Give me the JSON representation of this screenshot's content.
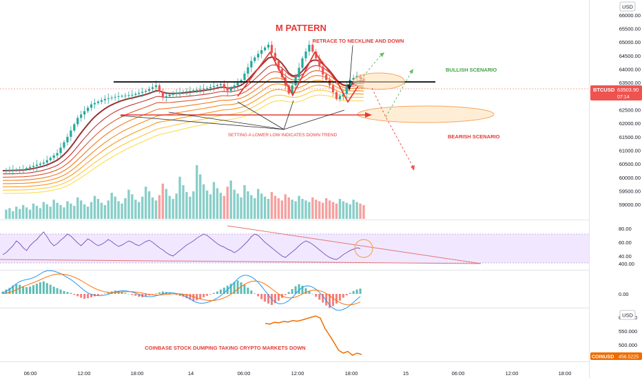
{
  "chart_data": {
    "type": "candlestick",
    "symbol": "BTCUSD",
    "currency": "USD",
    "last_price": "63503.90",
    "countdown": "07:14",
    "time_labels": [
      "06:00",
      "12:00",
      "18:00",
      "14",
      "06:00",
      "12:00",
      "18:00",
      "15",
      "06:00",
      "12:00",
      "18:00"
    ],
    "price_ticks": [
      66000,
      65500,
      65000,
      64500,
      64000,
      63500,
      63000,
      62500,
      62000,
      61500,
      61000,
      60500,
      60000,
      59500,
      59000
    ],
    "price_tick_labels": [
      "66000.00",
      "65500.00",
      "65000.00",
      "64500.00",
      "64000.00",
      "63500.00",
      "63000.00",
      "62500.00",
      "62000.00",
      "61500.00",
      "61000.00",
      "60500.00",
      "60000.00",
      "59500.00",
      "59000.00"
    ],
    "price_range": [
      58800,
      66300
    ],
    "price_path": [
      [
        0,
        60250
      ],
      [
        6,
        60300
      ],
      [
        12,
        60550
      ],
      [
        16,
        60900
      ],
      [
        19,
        61500
      ],
      [
        22,
        62200
      ],
      [
        26,
        62700
      ],
      [
        30,
        62900
      ],
      [
        34,
        63000
      ],
      [
        38,
        63050
      ],
      [
        42,
        63200
      ],
      [
        45,
        63400
      ],
      [
        47,
        62950
      ],
      [
        50,
        63100
      ],
      [
        55,
        63200
      ],
      [
        60,
        63300
      ],
      [
        64,
        63450
      ],
      [
        66,
        63200
      ],
      [
        70,
        63600
      ],
      [
        73,
        64300
      ],
      [
        76,
        64700
      ],
      [
        78,
        64900
      ],
      [
        80,
        64300
      ],
      [
        82,
        63700
      ],
      [
        84,
        63100
      ],
      [
        86,
        63700
      ],
      [
        88,
        64400
      ],
      [
        90,
        64900
      ],
      [
        92,
        64400
      ],
      [
        94,
        63800
      ],
      [
        96,
        63400
      ],
      [
        98,
        62900
      ],
      [
        100,
        63100
      ],
      [
        102,
        63600
      ],
      [
        104,
        63750
      ],
      [
        106,
        63550
      ]
    ],
    "ribbon_offsets": [
      0,
      120,
      240,
      360,
      480,
      600,
      720,
      840
    ],
    "ribbon_colors": [
      "#8b1a1a",
      "#b71c1c",
      "#d84315",
      "#ef6c00",
      "#f57c00",
      "#fb8c00",
      "#fbc02d",
      "#fdd835"
    ],
    "volume": [
      12,
      14,
      10,
      16,
      13,
      18,
      15,
      12,
      20,
      17,
      14,
      22,
      19,
      16,
      25,
      21,
      18,
      15,
      23,
      20,
      17,
      28,
      24,
      19,
      16,
      22,
      30,
      26,
      21,
      18,
      24,
      34,
      29,
      23,
      20,
      27,
      38,
      32,
      25,
      22,
      29,
      42,
      36,
      28,
      24,
      31,
      46,
      39,
      30,
      26,
      33,
      55,
      44,
      35,
      29,
      36,
      70,
      58,
      45,
      37,
      32,
      48,
      40,
      34,
      30,
      42,
      50,
      38,
      33,
      28,
      44,
      36,
      31,
      27,
      39,
      33,
      29,
      26,
      35,
      30,
      27,
      24,
      32,
      28,
      25,
      23,
      30,
      26,
      24,
      22,
      28,
      25,
      23,
      21,
      27,
      24,
      22,
      20,
      26,
      23,
      21,
      19,
      25,
      22,
      20,
      18,
      24,
      21,
      19,
      17
    ],
    "rsi_ticks": [
      80,
      60,
      40
    ],
    "rsi_tick_labels": [
      "80.00",
      "60.00",
      "40.00"
    ],
    "rsi_band": [
      30,
      70
    ],
    "rsi": [
      42,
      45,
      50,
      55,
      62,
      58,
      52,
      48,
      55,
      60,
      64,
      70,
      75,
      68,
      60,
      55,
      58,
      63,
      67,
      72,
      69,
      64,
      59,
      55,
      60,
      65,
      62,
      58,
      55,
      57,
      60,
      64,
      61,
      57,
      54,
      56,
      59,
      62,
      60,
      57,
      55,
      58,
      61,
      63,
      60,
      56,
      52,
      49,
      45,
      42,
      40,
      44,
      48,
      52,
      56,
      59,
      62,
      66,
      69,
      72,
      70,
      66,
      62,
      58,
      55,
      53,
      50,
      48,
      45,
      48,
      52,
      57,
      62,
      68,
      72,
      70,
      65,
      60,
      56,
      52,
      48,
      44,
      40,
      38,
      42,
      46,
      50,
      55,
      59,
      62,
      60,
      57,
      53,
      49,
      45,
      41,
      38,
      36,
      35,
      38,
      42,
      45,
      48,
      50,
      52,
      51
    ],
    "macd_ticks": [
      400,
      0
    ],
    "macd_tick_labels": [
      "400.00",
      "0.00"
    ],
    "macd_hist": [
      10,
      18,
      25,
      35,
      40,
      38,
      32,
      28,
      30,
      36,
      42,
      48,
      52,
      45,
      38,
      30,
      24,
      18,
      12,
      8,
      4,
      -4,
      -10,
      -16,
      -20,
      -18,
      -14,
      -10,
      -6,
      -2,
      2,
      6,
      10,
      14,
      12,
      8,
      4,
      0,
      -4,
      -8,
      -12,
      -14,
      -10,
      -6,
      -2,
      2,
      6,
      10,
      8,
      4,
      0,
      -4,
      -8,
      -12,
      -18,
      -24,
      -30,
      -26,
      -20,
      -14,
      -8,
      -2,
      4,
      10,
      18,
      26,
      34,
      42,
      50,
      56,
      48,
      38,
      26,
      14,
      2,
      -10,
      -22,
      -32,
      -40,
      -46,
      -38,
      -28,
      -16,
      -4,
      8,
      20,
      32,
      40,
      34,
      24,
      12,
      0,
      -12,
      -24,
      -36,
      -48,
      -58,
      -50,
      -40,
      -28,
      -16,
      -6,
      4,
      12,
      18,
      22
    ],
    "coin_symbol": "COINUSD",
    "coin_price": "456.5225",
    "coin_currency": "USD",
    "coin_ticks": [
      600,
      550,
      500
    ],
    "coin_tick_labels": [
      "600.000",
      "550.000",
      "500.000"
    ],
    "coin_range": [
      445,
      620
    ],
    "coin": [
      [
        0,
        578
      ],
      [
        1,
        575
      ],
      [
        2,
        582
      ],
      [
        3,
        580
      ],
      [
        4,
        585
      ],
      [
        5,
        583
      ],
      [
        6,
        588
      ],
      [
        7,
        586
      ],
      [
        8,
        590
      ],
      [
        9,
        595
      ],
      [
        10,
        600
      ],
      [
        11,
        605
      ],
      [
        12,
        597
      ],
      [
        13,
        560
      ],
      [
        14,
        535
      ],
      [
        15,
        508
      ],
      [
        16,
        480
      ],
      [
        17,
        470
      ],
      [
        18,
        476
      ],
      [
        19,
        462
      ],
      [
        20,
        470
      ],
      [
        21,
        465
      ]
    ]
  },
  "annotations": {
    "title": "M PATTERN",
    "retrace": "RETRACE TO NECKLINE AND DOWN",
    "bullish": "BULLISH SCENARIO",
    "bearish": "BEARISH SCENARIO",
    "lower_low": "SETTING A LOWER LOW INDICATES DOWN TREND",
    "coinbase": "COINBASE STOCK DUMPING TAKING CRYPTO MARKETS DOWN"
  },
  "colors": {
    "up": "#26a69a",
    "down": "#ef5350",
    "annotation_red": "#e53935",
    "annotation_green": "#43a047",
    "rsi_line": "#7e57c2",
    "rsi_band": "#ede2ff",
    "macd_line": "#2196f3",
    "signal_line": "#ff6d00",
    "coin_line": "#ef6c00",
    "highlight_fill": "#ffe0b2"
  }
}
